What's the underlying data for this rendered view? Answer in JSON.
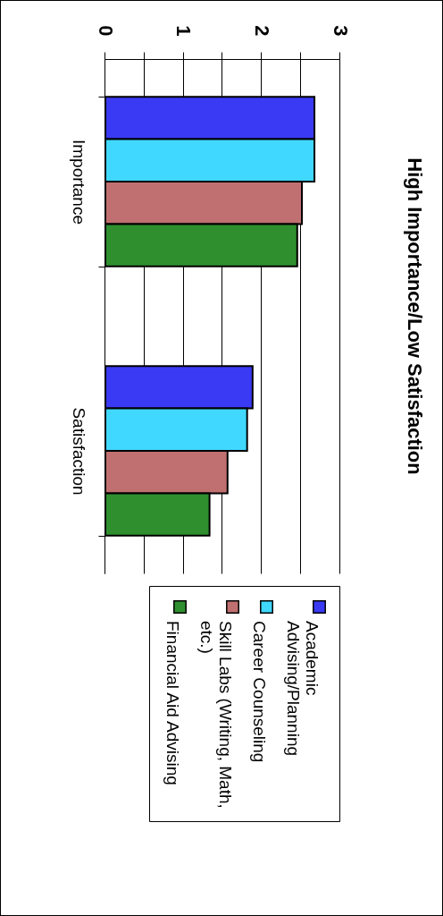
{
  "chart_data": {
    "type": "bar",
    "title": "High Importance/Low Satisfaction",
    "categories": [
      "Importance",
      "Satisfaction"
    ],
    "series": [
      {
        "name": "Academic Advising/Planning",
        "color": "#3a3af5",
        "values": [
          2.67,
          1.88
        ]
      },
      {
        "name": "Career Counseling",
        "color": "#40d8ff",
        "values": [
          2.67,
          1.81
        ]
      },
      {
        "name": "Skill Labs (Writing, Math, etc.)",
        "color": "#c07070",
        "values": [
          2.51,
          1.56
        ]
      },
      {
        "name": "Financial Aid Advising",
        "color": "#2f8f2f",
        "values": [
          2.45,
          1.33
        ]
      }
    ],
    "orientation": "horizontal",
    "xlim": [
      0,
      3
    ],
    "xticks": [
      0,
      {
        "value": 0.5,
        "label": null
      },
      1,
      {
        "value": 1.5,
        "label": null
      },
      2,
      {
        "value": 2.5,
        "label": null
      },
      3
    ],
    "grid": "x",
    "legend": "right"
  }
}
